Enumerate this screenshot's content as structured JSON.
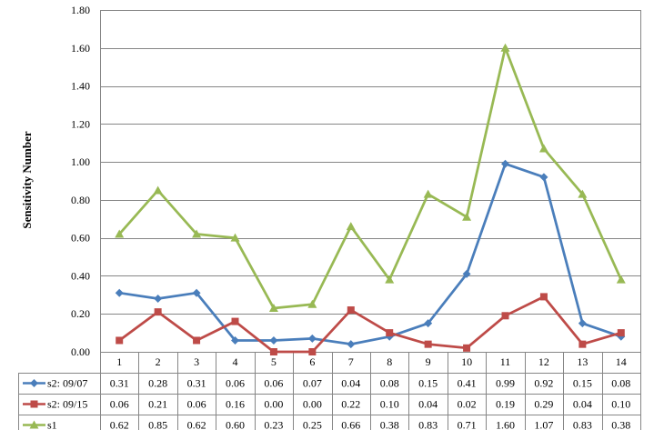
{
  "chart_data": {
    "type": "line",
    "title": "",
    "xlabel": "",
    "ylabel": "Sensitivity Number",
    "ylim": [
      0,
      1.8
    ],
    "y_ticks": [
      "0.00",
      "0.20",
      "0.40",
      "0.60",
      "0.80",
      "1.00",
      "1.20",
      "1.40",
      "1.60",
      "1.80"
    ],
    "grid": true,
    "legend_placement": "data table below plot",
    "categories": [
      "1",
      "2",
      "3",
      "4",
      "5",
      "6",
      "7",
      "8",
      "9",
      "10",
      "11",
      "12",
      "13",
      "14"
    ],
    "series": [
      {
        "name": "s2: 09/07",
        "color": "#4A7EBB",
        "marker": "diamond",
        "values": [
          0.31,
          0.28,
          0.31,
          0.06,
          0.06,
          0.07,
          0.04,
          0.08,
          0.15,
          0.41,
          0.99,
          0.92,
          0.15,
          0.08
        ],
        "labels": [
          "0.31",
          "0.28",
          "0.31",
          "0.06",
          "0.06",
          "0.07",
          "0.04",
          "0.08",
          "0.15",
          "0.41",
          "0.99",
          "0.92",
          "0.15",
          "0.08"
        ]
      },
      {
        "name": "s2: 09/15",
        "color": "#BE4B48",
        "marker": "square",
        "values": [
          0.06,
          0.21,
          0.06,
          0.16,
          0.0,
          0.0,
          0.22,
          0.1,
          0.04,
          0.02,
          0.19,
          0.29,
          0.04,
          0.1
        ],
        "labels": [
          "0.06",
          "0.21",
          "0.06",
          "0.16",
          "0.00",
          "0.00",
          "0.22",
          "0.10",
          "0.04",
          "0.02",
          "0.19",
          "0.29",
          "0.04",
          "0.10"
        ]
      },
      {
        "name": "s1",
        "color": "#98B954",
        "marker": "triangle",
        "values": [
          0.62,
          0.85,
          0.62,
          0.6,
          0.23,
          0.25,
          0.66,
          0.38,
          0.83,
          0.71,
          1.6,
          1.07,
          0.83,
          0.38
        ],
        "labels": [
          "0.62",
          "0.85",
          "0.62",
          "0.60",
          "0.23",
          "0.25",
          "0.66",
          "0.38",
          "0.83",
          "0.71",
          "1.60",
          "1.07",
          "0.83",
          "0.38"
        ]
      }
    ]
  }
}
